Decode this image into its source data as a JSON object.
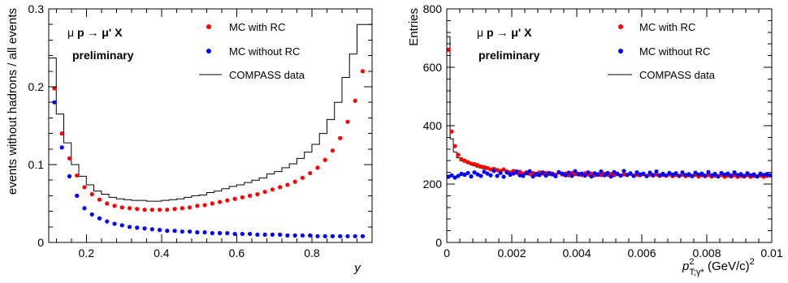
{
  "chart_data": [
    {
      "type": "scatter",
      "title": "",
      "process_label_prefix": "μ ",
      "process_label_target": "p",
      "process_label_suffix": " → μ' X",
      "preliminary_label": "preliminary",
      "xlabel": "y",
      "ylabel": "events without hadrons / all events",
      "xlim": [
        0.1,
        0.96
      ],
      "ylim": [
        0,
        0.3
      ],
      "xticks": [
        0.2,
        0.4,
        0.6,
        0.8
      ],
      "yticks": [
        0,
        0.1,
        0.2,
        0.3
      ],
      "xtick_labels": [
        "0.2",
        "0.4",
        "0.6",
        "0.8"
      ],
      "ytick_labels": [
        "0",
        "0.1",
        "0.2",
        "0.3"
      ],
      "legend": [
        {
          "label": "MC with RC",
          "style": "marker",
          "color": "#ff0000"
        },
        {
          "label": "MC without RC",
          "style": "marker",
          "color": "#0000ff"
        },
        {
          "label": "COMPASS data",
          "style": "line",
          "color": "#000000"
        }
      ],
      "series": [
        {
          "name": "MC with RC",
          "color": "#ff0000",
          "x": [
            0.115,
            0.135,
            0.155,
            0.175,
            0.195,
            0.215,
            0.235,
            0.255,
            0.275,
            0.295,
            0.315,
            0.335,
            0.355,
            0.375,
            0.395,
            0.415,
            0.435,
            0.455,
            0.475,
            0.495,
            0.515,
            0.535,
            0.555,
            0.575,
            0.595,
            0.615,
            0.635,
            0.655,
            0.675,
            0.695,
            0.715,
            0.735,
            0.755,
            0.775,
            0.795,
            0.815,
            0.835,
            0.855,
            0.875,
            0.895,
            0.915,
            0.935
          ],
          "y": [
            0.198,
            0.14,
            0.108,
            0.086,
            0.071,
            0.062,
            0.055,
            0.05,
            0.047,
            0.045,
            0.044,
            0.043,
            0.042,
            0.042,
            0.042,
            0.042,
            0.043,
            0.044,
            0.045,
            0.047,
            0.048,
            0.05,
            0.052,
            0.054,
            0.056,
            0.058,
            0.06,
            0.062,
            0.065,
            0.068,
            0.071,
            0.074,
            0.078,
            0.083,
            0.089,
            0.096,
            0.106,
            0.118,
            0.134,
            0.155,
            0.182,
            0.22
          ]
        },
        {
          "name": "MC without RC",
          "color": "#0000ff",
          "x": [
            0.115,
            0.135,
            0.155,
            0.175,
            0.195,
            0.215,
            0.235,
            0.255,
            0.275,
            0.295,
            0.315,
            0.335,
            0.355,
            0.375,
            0.395,
            0.415,
            0.435,
            0.455,
            0.475,
            0.495,
            0.515,
            0.535,
            0.555,
            0.575,
            0.595,
            0.615,
            0.635,
            0.655,
            0.675,
            0.695,
            0.715,
            0.735,
            0.755,
            0.775,
            0.795,
            0.815,
            0.835,
            0.855,
            0.875,
            0.895,
            0.915,
            0.935
          ],
          "y": [
            0.18,
            0.122,
            0.085,
            0.06,
            0.044,
            0.036,
            0.031,
            0.027,
            0.024,
            0.022,
            0.02,
            0.019,
            0.018,
            0.017,
            0.016,
            0.015,
            0.015,
            0.014,
            0.014,
            0.013,
            0.013,
            0.012,
            0.012,
            0.012,
            0.011,
            0.011,
            0.011,
            0.01,
            0.01,
            0.01,
            0.01,
            0.009,
            0.009,
            0.009,
            0.009,
            0.008,
            0.008,
            0.008,
            0.008,
            0.008,
            0.008,
            0.008
          ]
        },
        {
          "name": "COMPASS data",
          "color": "#000000",
          "style": "step",
          "bin_edges": [
            0.1,
            0.12,
            0.14,
            0.16,
            0.18,
            0.2,
            0.22,
            0.24,
            0.26,
            0.28,
            0.3,
            0.32,
            0.34,
            0.36,
            0.38,
            0.4,
            0.42,
            0.44,
            0.46,
            0.48,
            0.5,
            0.52,
            0.54,
            0.56,
            0.58,
            0.6,
            0.62,
            0.64,
            0.66,
            0.68,
            0.7,
            0.72,
            0.74,
            0.76,
            0.78,
            0.8,
            0.82,
            0.84,
            0.86,
            0.88,
            0.9,
            0.92,
            0.94,
            0.96
          ],
          "values": [
            0.237,
            0.165,
            0.128,
            0.1,
            0.085,
            0.074,
            0.066,
            0.062,
            0.058,
            0.056,
            0.055,
            0.054,
            0.054,
            0.053,
            0.053,
            0.054,
            0.055,
            0.056,
            0.058,
            0.06,
            0.061,
            0.064,
            0.066,
            0.069,
            0.072,
            0.074,
            0.077,
            0.08,
            0.083,
            0.088,
            0.091,
            0.096,
            0.101,
            0.108,
            0.116,
            0.126,
            0.14,
            0.158,
            0.18,
            0.212,
            0.242,
            0.28,
            0.28
          ]
        }
      ]
    },
    {
      "type": "scatter",
      "title": "",
      "process_label_prefix": "μ ",
      "process_label_target": "p",
      "process_label_suffix": " → μ' X",
      "preliminary_label": "preliminary",
      "xlabel_main": "p",
      "xlabel_sup": "2",
      "xlabel_sub": "T;γ*",
      "xlabel_units": " (GeV/c)",
      "xlabel_units_sup": "2",
      "ylabel": "Entries",
      "xlim": [
        0,
        0.01
      ],
      "ylim": [
        0,
        800
      ],
      "xticks": [
        0,
        0.002,
        0.004,
        0.006,
        0.008,
        0.01
      ],
      "yticks": [
        0,
        200,
        400,
        600,
        800
      ],
      "xtick_labels": [
        "0",
        "0.002",
        "0.004",
        "0.006",
        "0.008",
        "0.01"
      ],
      "ytick_labels": [
        "0",
        "200",
        "400",
        "600",
        "800"
      ],
      "legend": [
        {
          "label": "MC with RC",
          "style": "marker",
          "color": "#ff0000"
        },
        {
          "label": "MC without RC",
          "style": "marker",
          "color": "#0000ff"
        },
        {
          "label": "COMPASS data",
          "style": "line",
          "color": "#000000"
        }
      ],
      "series": [
        {
          "name": "MC with RC",
          "color": "#ff0000",
          "x": [
            5e-05,
            0.00015,
            0.00025,
            0.00035,
            0.00045,
            0.00055,
            0.00065,
            0.00075,
            0.00085,
            0.00095,
            0.00105,
            0.00115,
            0.00125,
            0.00135,
            0.00145,
            0.00155,
            0.00165,
            0.00175,
            0.00185,
            0.00195,
            0.00205,
            0.00215,
            0.00225,
            0.00235,
            0.00245,
            0.00255,
            0.00265,
            0.00275,
            0.00285,
            0.00295,
            0.00305,
            0.00315,
            0.00325,
            0.00335,
            0.00345,
            0.00355,
            0.00365,
            0.00375,
            0.00385,
            0.00395,
            0.00405,
            0.00415,
            0.00425,
            0.00435,
            0.00445,
            0.00455,
            0.00465,
            0.00475,
            0.00485,
            0.00495,
            0.00505,
            0.00515,
            0.00525,
            0.00535,
            0.00545,
            0.00555,
            0.00565,
            0.00575,
            0.00585,
            0.00595,
            0.00605,
            0.00615,
            0.00625,
            0.00635,
            0.00645,
            0.00655,
            0.00665,
            0.00675,
            0.00685,
            0.00695,
            0.00705,
            0.00715,
            0.00725,
            0.00735,
            0.00745,
            0.00755,
            0.00765,
            0.00775,
            0.00785,
            0.00795,
            0.00805,
            0.00815,
            0.00825,
            0.00835,
            0.00845,
            0.00855,
            0.00865,
            0.00875,
            0.00885,
            0.00895,
            0.00905,
            0.00915,
            0.00925,
            0.00935,
            0.00945,
            0.00955,
            0.00965,
            0.00975,
            0.00985,
            0.00995
          ],
          "y": [
            660,
            380,
            330,
            300,
            285,
            280,
            275,
            270,
            268,
            265,
            260,
            258,
            255,
            250,
            252,
            248,
            245,
            250,
            243,
            240,
            245,
            238,
            242,
            236,
            240,
            235,
            238,
            232,
            240,
            236,
            238,
            234,
            236,
            232,
            240,
            233,
            236,
            230,
            238,
            234,
            235,
            231,
            237,
            233,
            236,
            230,
            234,
            231,
            235,
            232,
            234,
            230,
            236,
            229,
            233,
            231,
            235,
            229,
            232,
            230,
            234,
            228,
            232,
            229,
            233,
            228,
            231,
            229,
            233,
            227,
            231,
            228,
            232,
            227,
            230,
            228,
            232,
            226,
            230,
            227,
            231,
            226,
            229,
            227,
            231,
            225,
            229,
            226,
            230,
            225,
            228,
            226,
            230,
            225,
            228,
            226,
            229,
            225,
            228,
            230
          ]
        },
        {
          "name": "MC without RC",
          "color": "#0000ff",
          "x": [
            5e-05,
            0.00015,
            0.00025,
            0.00035,
            0.00045,
            0.00055,
            0.00065,
            0.00075,
            0.00085,
            0.00095,
            0.00105,
            0.00115,
            0.00125,
            0.00135,
            0.00145,
            0.00155,
            0.00165,
            0.00175,
            0.00185,
            0.00195,
            0.00205,
            0.00215,
            0.00225,
            0.00235,
            0.00245,
            0.00255,
            0.00265,
            0.00275,
            0.00285,
            0.00295,
            0.00305,
            0.00315,
            0.00325,
            0.00335,
            0.00345,
            0.00355,
            0.00365,
            0.00375,
            0.00385,
            0.00395,
            0.00405,
            0.00415,
            0.00425,
            0.00435,
            0.00445,
            0.00455,
            0.00465,
            0.00475,
            0.00485,
            0.00495,
            0.00505,
            0.00515,
            0.00525,
            0.00535,
            0.00545,
            0.00555,
            0.00565,
            0.00575,
            0.00585,
            0.00595,
            0.00605,
            0.00615,
            0.00625,
            0.00635,
            0.00645,
            0.00655,
            0.00665,
            0.00675,
            0.00685,
            0.00695,
            0.00705,
            0.00715,
            0.00725,
            0.00735,
            0.00745,
            0.00755,
            0.00765,
            0.00775,
            0.00785,
            0.00795,
            0.00805,
            0.00815,
            0.00825,
            0.00835,
            0.00845,
            0.00855,
            0.00865,
            0.00875,
            0.00885,
            0.00895,
            0.00905,
            0.00915,
            0.00925,
            0.00935,
            0.00945,
            0.00955,
            0.00965,
            0.00975,
            0.00985,
            0.00995
          ],
          "y": [
            225,
            230,
            222,
            228,
            235,
            232,
            238,
            226,
            240,
            233,
            228,
            242,
            236,
            230,
            245,
            228,
            238,
            225,
            240,
            232,
            236,
            243,
            230,
            228,
            237,
            244,
            226,
            235,
            231,
            240,
            229,
            238,
            233,
            227,
            241,
            236,
            230,
            239,
            228,
            244,
            233,
            236,
            229,
            240,
            226,
            237,
            232,
            243,
            230,
            238,
            226,
            241,
            234,
            229,
            245,
            232,
            237,
            228,
            240,
            233,
            236,
            227,
            239,
            231,
            243,
            230,
            235,
            229,
            238,
            232,
            237,
            228,
            240,
            231,
            234,
            227,
            239,
            232,
            236,
            229,
            241,
            230,
            235,
            226,
            238,
            232,
            236,
            229,
            240,
            231,
            234,
            228,
            237,
            230,
            233,
            226,
            236,
            231,
            234,
            230
          ]
        },
        {
          "name": "COMPASS data",
          "color": "#000000",
          "style": "step",
          "bin_start": 0,
          "bin_width": 0.0001,
          "values": [
            705,
            355,
            310,
            290,
            280,
            275,
            270,
            268,
            262,
            258,
            255,
            252,
            250,
            248,
            246,
            244,
            242,
            245,
            240,
            238,
            242,
            236,
            240,
            234,
            238,
            235,
            237,
            233,
            239,
            235,
            236,
            232,
            235,
            231,
            240,
            232,
            236,
            230,
            238,
            233,
            236,
            230,
            238,
            232,
            236,
            229,
            235,
            231,
            236,
            231,
            235,
            229,
            237,
            229,
            234,
            230,
            236,
            228,
            233,
            230,
            235,
            228,
            233,
            229,
            234,
            227,
            232,
            229,
            234,
            227,
            232,
            228,
            233,
            226,
            231,
            228,
            232,
            226,
            231,
            227,
            232,
            225,
            230,
            227,
            231,
            225,
            230,
            226,
            231,
            225,
            229,
            226,
            230,
            224,
            229,
            226,
            231,
            224,
            229,
            230
          ]
        }
      ]
    }
  ]
}
